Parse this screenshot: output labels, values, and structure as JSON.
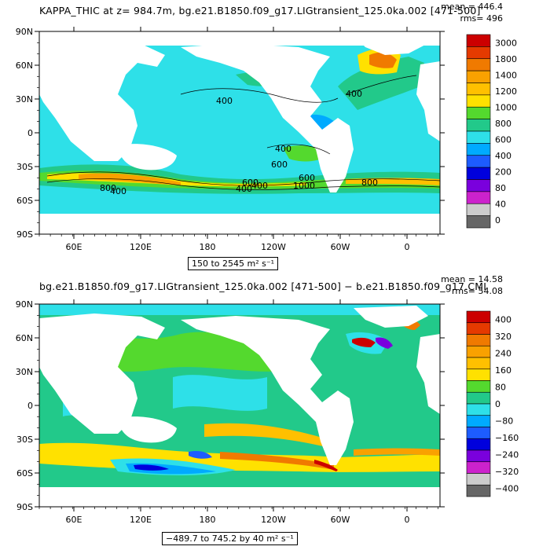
{
  "chart_data": [
    {
      "type": "heatmap",
      "title": "KAPPA_THIC at z= 984.7m, bg.e21.B1850.f09_g17.LIGtransient_125.0ka.002 [471-500]",
      "stats": {
        "mean_label": "mean = 446.4",
        "rms_label": "rms= 496"
      },
      "range_label": "150 to 2545 m² s⁻¹",
      "x_ticks": [
        "60E",
        "120E",
        "180",
        "120W",
        "60W",
        "0"
      ],
      "y_ticks": [
        "90N",
        "60N",
        "30N",
        "0",
        "30S",
        "60S",
        "90S"
      ],
      "contour_labels": [
        "400",
        "400",
        "600",
        "400",
        "600",
        "1000",
        "400",
        "800",
        "400",
        "600",
        "400",
        "800"
      ],
      "colorbar": {
        "levels": [
          "3000",
          "1800",
          "1400",
          "1200",
          "1000",
          "800",
          "600",
          "400",
          "200",
          "80",
          "40",
          "0"
        ],
        "colors": [
          "#cc0000",
          "#e53a00",
          "#f07a00",
          "#f9a100",
          "#ffc000",
          "#ffe100",
          "#54d92e",
          "#22c98a",
          "#2ee0e8",
          "#00aaff",
          "#1d5cff",
          "#0000dd",
          "#7a00dd",
          "#cc22cc",
          "#cccccc",
          "#666666"
        ]
      },
      "ocean_base_color": "#2ee0e8"
    },
    {
      "type": "heatmap",
      "title": "bg.e21.B1850.f09_g17.LIGtransient_125.0ka.002 [471-500] − b.e21.B1850.f09_g17.CMI",
      "stats": {
        "mean_label": "mean = 14.58",
        "rms_label": "rms= 54.08"
      },
      "range_label": "−489.7 to 745.2 by 40 m² s⁻¹",
      "x_ticks": [
        "60E",
        "120E",
        "180",
        "120W",
        "60W",
        "0"
      ],
      "y_ticks": [
        "90N",
        "60N",
        "30N",
        "0",
        "30S",
        "60S",
        "90S"
      ],
      "colorbar": {
        "levels": [
          "400",
          "320",
          "240",
          "160",
          "80",
          "0",
          "−80",
          "−160",
          "−240",
          "−320",
          "−400"
        ],
        "colors": [
          "#cc0000",
          "#e53a00",
          "#f07a00",
          "#f9a100",
          "#ffc000",
          "#ffe100",
          "#54d92e",
          "#22c98a",
          "#2ee0e8",
          "#00aaff",
          "#1d5cff",
          "#0000dd",
          "#7a00dd",
          "#cc22cc",
          "#cccccc",
          "#666666"
        ]
      },
      "ocean_base_color": "#22c98a"
    }
  ]
}
